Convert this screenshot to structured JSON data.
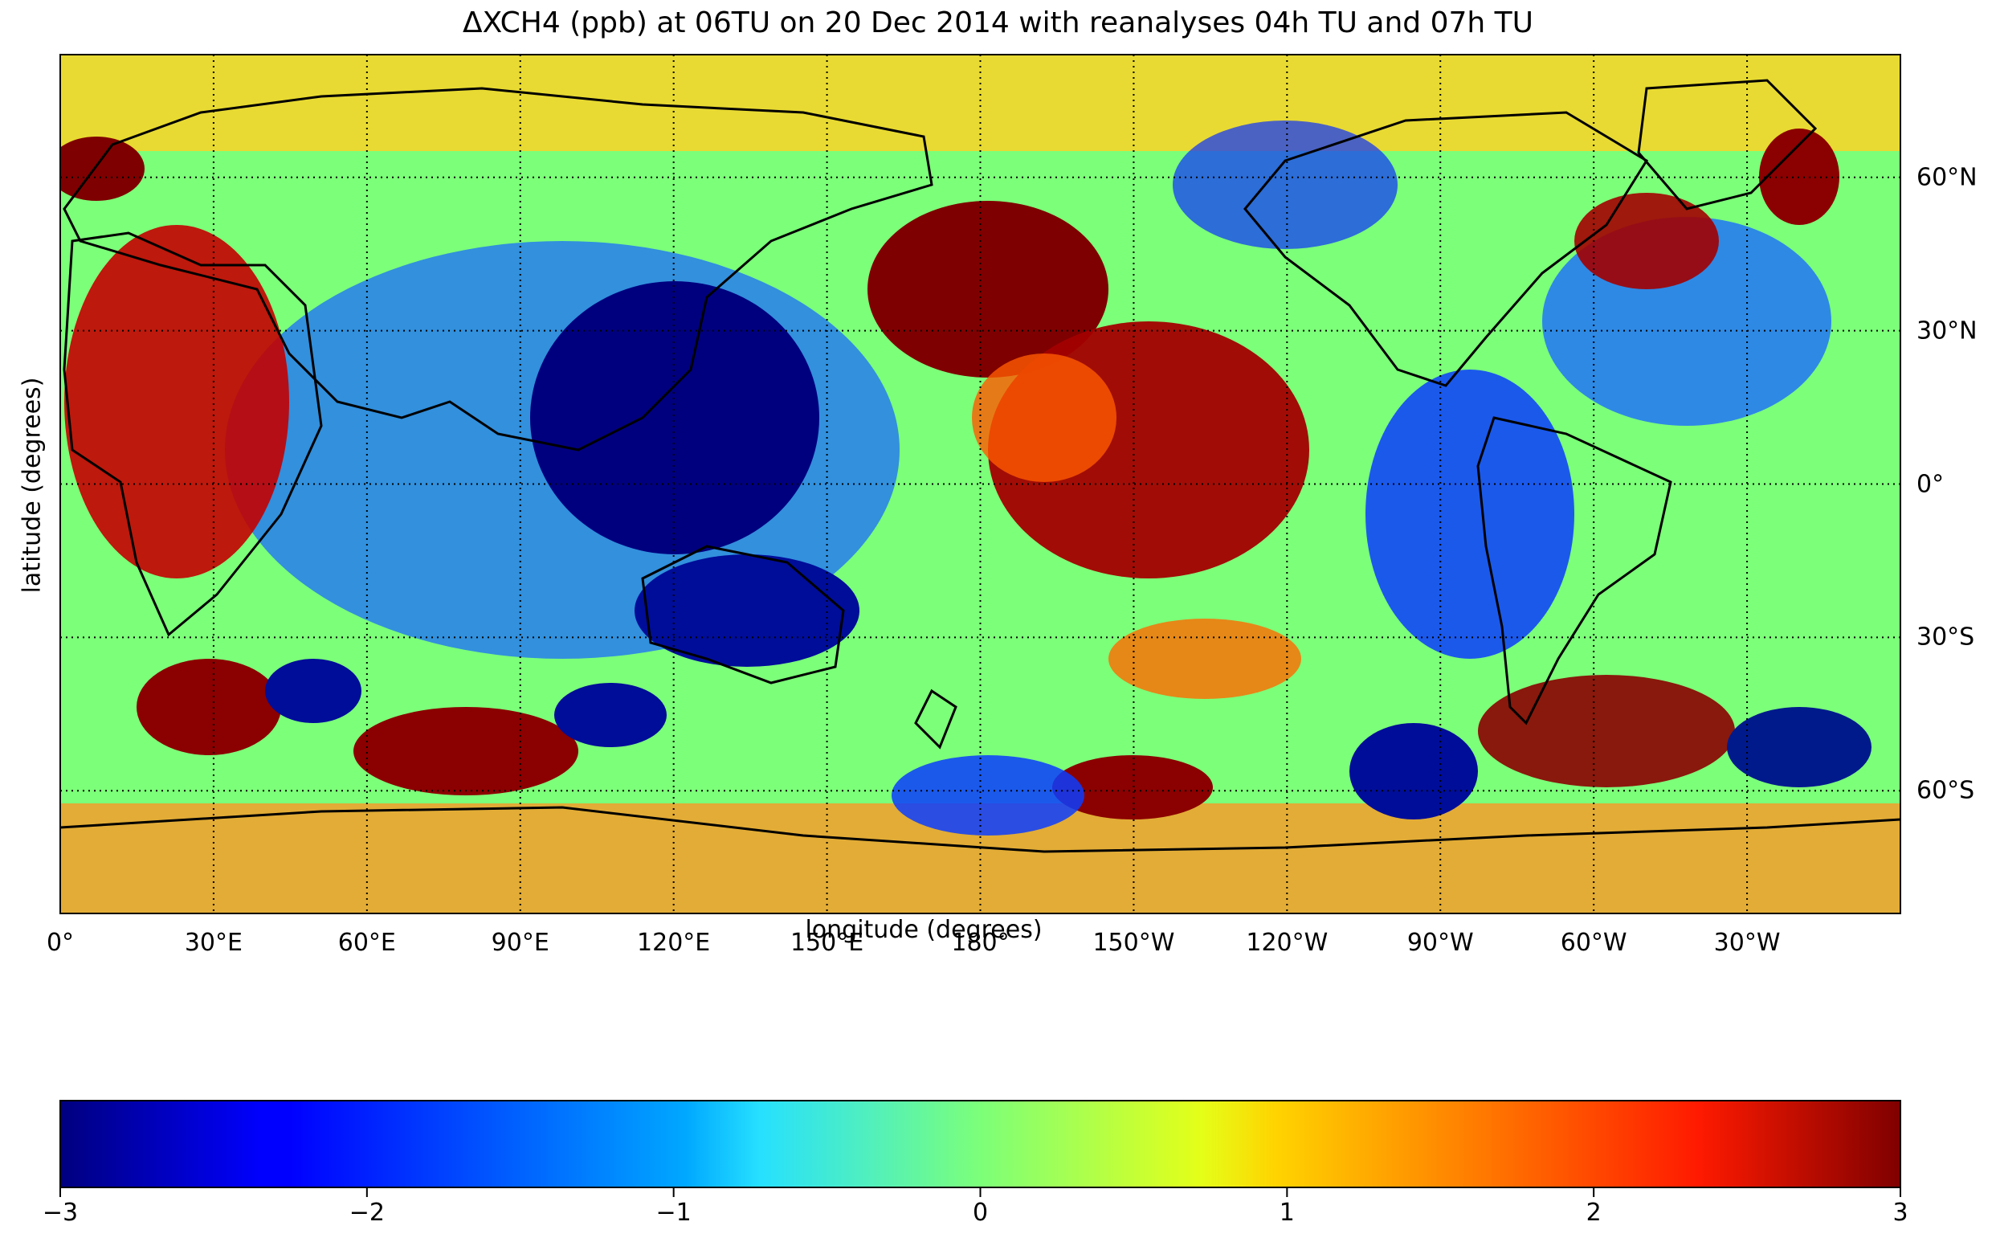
{
  "chart_data": {
    "type": "heatmap",
    "title": "ΔXCH4 (ppb) at 06TU on 20 Dec 2014 with reanalyses 04h TU and 07h TU",
    "xlabel": "longitude (degrees)",
    "ylabel": "latitude (degrees)",
    "x_ticks": [
      "0°",
      "30°E",
      "60°E",
      "90°E",
      "120°E",
      "150°E",
      "180°",
      "150°W",
      "120°W",
      "90°W",
      "60°W",
      "30°W"
    ],
    "y_ticks": [
      "60°N",
      "30°N",
      "0°",
      "30°S",
      "60°S"
    ],
    "x_tick_values": [
      0,
      30,
      60,
      90,
      120,
      150,
      180,
      210,
      240,
      270,
      300,
      330
    ],
    "y_tick_values": [
      60,
      30,
      0,
      -30,
      -60
    ],
    "xlim": [
      0,
      360
    ],
    "ylim": [
      -90,
      90
    ],
    "grid": true,
    "colorbar": {
      "colormap": "jet",
      "vmin": -3,
      "vmax": 3,
      "ticks": [
        "−3",
        "−2",
        "−1",
        "0",
        "1",
        "2",
        "3"
      ],
      "tick_values": [
        -3,
        -2,
        -1,
        0,
        1,
        2,
        3
      ],
      "orientation": "horizontal",
      "placement": "bottom"
    }
  }
}
